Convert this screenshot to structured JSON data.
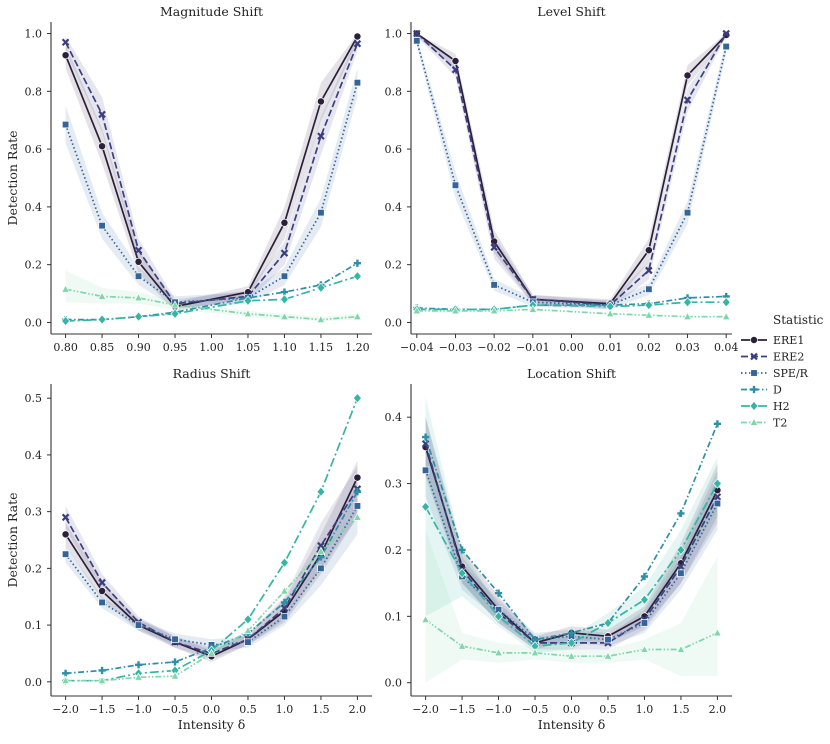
{
  "legend": {
    "title": "Statistic",
    "entries": [
      {
        "name": "ERE1",
        "color": "#2b1f3a",
        "marker": "circle",
        "dash": "solid"
      },
      {
        "name": "ERE2",
        "color": "#3c3f7e",
        "marker": "x",
        "dash": "dash"
      },
      {
        "name": "SPE/R",
        "color": "#34659a",
        "marker": "square",
        "dash": "dot"
      },
      {
        "name": "D",
        "color": "#2e8fa6",
        "marker": "plus",
        "dash": "dashdot"
      },
      {
        "name": "H2",
        "color": "#36b5a5",
        "marker": "diamond",
        "dash": "longdashdot"
      },
      {
        "name": "T2",
        "color": "#80d6ab",
        "marker": "triangle",
        "dash": "dashdotdot"
      }
    ]
  },
  "chart_data": [
    {
      "type": "line",
      "title": "Magnitude Shift",
      "xlabel": "",
      "ylabel": "Detection Rate",
      "x": [
        0.8,
        0.85,
        0.9,
        0.95,
        1.05,
        1.1,
        1.15,
        1.2
      ],
      "tick_labels": [
        "0.80",
        "0.85",
        "0.90",
        "0.95",
        "1.00",
        "1.05",
        "1.10",
        "1.15",
        "1.20"
      ],
      "tick_values": [
        0.8,
        0.85,
        0.9,
        0.95,
        1.0,
        1.05,
        1.1,
        1.15,
        1.2
      ],
      "xlim": [
        0.78,
        1.22
      ],
      "ylim": [
        -0.04,
        1.04
      ],
      "yticks": [
        0.0,
        0.2,
        0.4,
        0.6,
        0.8,
        1.0
      ],
      "ytick_labels": [
        "0.0",
        "0.2",
        "0.4",
        "0.6",
        "0.8",
        "1.0"
      ],
      "series": [
        {
          "name": "ERE1",
          "values": [
            0.925,
            0.61,
            0.21,
            0.055,
            0.105,
            0.345,
            0.765,
            0.99
          ],
          "lower": [
            0.88,
            0.55,
            0.17,
            0.04,
            0.085,
            0.29,
            0.7,
            0.97
          ],
          "upper": [
            0.96,
            0.67,
            0.25,
            0.07,
            0.125,
            0.4,
            0.83,
            1.0
          ]
        },
        {
          "name": "ERE2",
          "values": [
            0.97,
            0.72,
            0.25,
            0.065,
            0.09,
            0.24,
            0.645,
            0.965
          ],
          "lower": [
            0.94,
            0.66,
            0.21,
            0.05,
            0.07,
            0.2,
            0.58,
            0.94
          ],
          "upper": [
            0.99,
            0.78,
            0.29,
            0.08,
            0.11,
            0.28,
            0.71,
            0.99
          ]
        },
        {
          "name": "SPE/R",
          "values": [
            0.685,
            0.335,
            0.16,
            0.07,
            0.085,
            0.16,
            0.38,
            0.83
          ],
          "lower": [
            0.62,
            0.29,
            0.13,
            0.05,
            0.065,
            0.13,
            0.33,
            0.78
          ],
          "upper": [
            0.75,
            0.38,
            0.19,
            0.09,
            0.105,
            0.19,
            0.43,
            0.88
          ]
        },
        {
          "name": "D",
          "values": [
            0.01,
            0.01,
            0.02,
            0.035,
            0.085,
            0.105,
            0.13,
            0.205
          ]
        },
        {
          "name": "H2",
          "values": [
            0.005,
            0.01,
            0.02,
            0.03,
            0.075,
            0.08,
            0.12,
            0.16
          ]
        },
        {
          "name": "T2",
          "values": [
            0.115,
            0.09,
            0.085,
            0.06,
            0.03,
            0.02,
            0.01,
            0.02
          ],
          "lower": [
            0.07,
            0.065,
            0.065,
            0.045,
            0.02,
            0.01,
            0.005,
            0.01
          ],
          "upper": [
            0.18,
            0.12,
            0.105,
            0.075,
            0.04,
            0.03,
            0.02,
            0.03
          ]
        }
      ]
    },
    {
      "type": "line",
      "title": "Level Shift",
      "xlabel": "",
      "ylabel": "",
      "x": [
        -0.04,
        -0.03,
        -0.02,
        -0.01,
        0.01,
        0.02,
        0.03,
        0.04
      ],
      "tick_labels": [
        "−0.04",
        "−0.03",
        "−0.02",
        "−0.01",
        "0.00",
        "0.01",
        "0.02",
        "0.03",
        "0.04"
      ],
      "tick_values": [
        -0.04,
        -0.03,
        -0.02,
        -0.01,
        0.0,
        0.01,
        0.02,
        0.03,
        0.04
      ],
      "xlim": [
        -0.0415,
        0.0415
      ],
      "ylim": [
        -0.04,
        1.04
      ],
      "yticks": [
        0.0,
        0.2,
        0.4,
        0.6,
        0.8,
        1.0
      ],
      "ytick_labels": [
        "0.0",
        "0.2",
        "0.4",
        "0.6",
        "0.8",
        "1.0"
      ],
      "series": [
        {
          "name": "ERE1",
          "values": [
            1.0,
            0.905,
            0.28,
            0.08,
            0.065,
            0.25,
            0.855,
            0.995
          ],
          "lower": [
            0.99,
            0.88,
            0.24,
            0.065,
            0.05,
            0.21,
            0.82,
            0.985
          ],
          "upper": [
            1.0,
            0.93,
            0.32,
            0.095,
            0.08,
            0.29,
            0.89,
            1.0
          ]
        },
        {
          "name": "ERE2",
          "values": [
            1.0,
            0.875,
            0.26,
            0.08,
            0.06,
            0.18,
            0.77,
            1.0
          ],
          "lower": [
            0.99,
            0.85,
            0.22,
            0.065,
            0.045,
            0.15,
            0.73,
            0.99
          ],
          "upper": [
            1.0,
            0.9,
            0.3,
            0.095,
            0.075,
            0.21,
            0.81,
            1.0
          ]
        },
        {
          "name": "SPE/R",
          "values": [
            0.975,
            0.475,
            0.13,
            0.07,
            0.06,
            0.115,
            0.38,
            0.955
          ],
          "lower": [
            0.96,
            0.43,
            0.11,
            0.055,
            0.045,
            0.095,
            0.34,
            0.93
          ],
          "upper": [
            0.99,
            0.52,
            0.15,
            0.085,
            0.075,
            0.135,
            0.42,
            0.98
          ]
        },
        {
          "name": "D",
          "values": [
            0.05,
            0.045,
            0.045,
            0.06,
            0.06,
            0.065,
            0.085,
            0.09
          ]
        },
        {
          "name": "H2",
          "values": [
            0.045,
            0.045,
            0.045,
            0.06,
            0.055,
            0.06,
            0.07,
            0.07
          ]
        },
        {
          "name": "T2",
          "values": [
            0.04,
            0.04,
            0.04,
            0.045,
            0.03,
            0.025,
            0.02,
            0.02
          ]
        }
      ]
    },
    {
      "type": "line",
      "title": "Radius Shift",
      "xlabel": "Intensity δ",
      "ylabel": "Detection Rate",
      "x": [
        -2.0,
        -1.5,
        -1.0,
        -0.5,
        0.0,
        0.5,
        1.0,
        1.5,
        2.0
      ],
      "tick_labels": [
        "−2.0",
        "−1.5",
        "−1.0",
        "−0.5",
        "0.0",
        "0.5",
        "1.0",
        "1.5",
        "2.0"
      ],
      "tick_values": [
        -2.0,
        -1.5,
        -1.0,
        -0.5,
        0.0,
        0.5,
        1.0,
        1.5,
        2.0
      ],
      "xlim": [
        -2.2,
        2.2
      ],
      "ylim": [
        -0.025,
        0.525
      ],
      "yticks": [
        0.0,
        0.1,
        0.2,
        0.3,
        0.4,
        0.5
      ],
      "ytick_labels": [
        "0.0",
        "0.1",
        "0.2",
        "0.3",
        "0.4",
        "0.5"
      ],
      "series": [
        {
          "name": "ERE1",
          "values": [
            0.26,
            0.16,
            0.1,
            0.07,
            0.045,
            0.075,
            0.125,
            0.225,
            0.36
          ],
          "lower": [
            0.24,
            0.145,
            0.09,
            0.06,
            0.035,
            0.065,
            0.105,
            0.19,
            0.29
          ],
          "upper": [
            0.28,
            0.175,
            0.11,
            0.08,
            0.055,
            0.085,
            0.145,
            0.26,
            0.39
          ]
        },
        {
          "name": "ERE2",
          "values": [
            0.29,
            0.175,
            0.105,
            0.07,
            0.05,
            0.075,
            0.13,
            0.24,
            0.34
          ],
          "lower": [
            0.27,
            0.16,
            0.095,
            0.06,
            0.04,
            0.065,
            0.11,
            0.2,
            0.29
          ],
          "upper": [
            0.31,
            0.19,
            0.115,
            0.08,
            0.06,
            0.085,
            0.15,
            0.28,
            0.38
          ]
        },
        {
          "name": "SPE/R",
          "values": [
            0.225,
            0.14,
            0.1,
            0.075,
            0.065,
            0.07,
            0.115,
            0.2,
            0.31
          ],
          "lower": [
            0.21,
            0.13,
            0.09,
            0.065,
            0.055,
            0.06,
            0.1,
            0.17,
            0.26
          ],
          "upper": [
            0.24,
            0.15,
            0.11,
            0.085,
            0.075,
            0.08,
            0.13,
            0.23,
            0.35
          ]
        },
        {
          "name": "D",
          "values": [
            0.015,
            0.02,
            0.03,
            0.035,
            0.06,
            0.085,
            0.14,
            0.22,
            0.335
          ]
        },
        {
          "name": "H2",
          "values": [
            0.002,
            0.002,
            0.015,
            0.02,
            0.055,
            0.11,
            0.21,
            0.335,
            0.5
          ]
        },
        {
          "name": "T2",
          "values": [
            0.002,
            0.002,
            0.008,
            0.01,
            0.05,
            0.09,
            0.16,
            0.23,
            0.29
          ]
        }
      ]
    },
    {
      "type": "line",
      "title": "Location Shift",
      "xlabel": "Intensity δ",
      "ylabel": "",
      "x": [
        -2.0,
        -1.5,
        -1.0,
        -0.5,
        0.0,
        0.5,
        1.0,
        1.5,
        2.0
      ],
      "tick_labels": [
        "−2.0",
        "−1.5",
        "−1.0",
        "−0.5",
        "0.0",
        "0.5",
        "1.0",
        "1.5",
        "2.0"
      ],
      "tick_values": [
        -2.0,
        -1.5,
        -1.0,
        -0.5,
        0.0,
        0.5,
        1.0,
        1.5,
        2.0
      ],
      "xlim": [
        -2.2,
        2.2
      ],
      "ylim": [
        -0.02,
        0.45
      ],
      "yticks": [
        0.0,
        0.1,
        0.2,
        0.3,
        0.4
      ],
      "ytick_labels": [
        "0.0",
        "0.1",
        "0.2",
        "0.3",
        "0.4"
      ],
      "series": [
        {
          "name": "ERE1",
          "values": [
            0.355,
            0.175,
            0.11,
            0.06,
            0.075,
            0.07,
            0.1,
            0.18,
            0.29
          ],
          "lower": [
            0.31,
            0.15,
            0.09,
            0.05,
            0.065,
            0.06,
            0.085,
            0.15,
            0.25
          ],
          "upper": [
            0.4,
            0.2,
            0.13,
            0.07,
            0.085,
            0.08,
            0.115,
            0.21,
            0.33
          ]
        },
        {
          "name": "ERE2",
          "values": [
            0.36,
            0.17,
            0.105,
            0.06,
            0.06,
            0.06,
            0.095,
            0.175,
            0.28
          ],
          "lower": [
            0.32,
            0.15,
            0.09,
            0.05,
            0.05,
            0.05,
            0.08,
            0.15,
            0.24
          ],
          "upper": [
            0.4,
            0.19,
            0.12,
            0.07,
            0.07,
            0.07,
            0.11,
            0.2,
            0.32
          ]
        },
        {
          "name": "SPE/R",
          "values": [
            0.32,
            0.16,
            0.11,
            0.065,
            0.07,
            0.065,
            0.09,
            0.165,
            0.27
          ],
          "lower": [
            0.28,
            0.14,
            0.095,
            0.055,
            0.06,
            0.055,
            0.075,
            0.14,
            0.23
          ],
          "upper": [
            0.36,
            0.18,
            0.125,
            0.075,
            0.08,
            0.075,
            0.105,
            0.19,
            0.31
          ]
        },
        {
          "name": "D",
          "values": [
            0.37,
            0.2,
            0.135,
            0.065,
            0.075,
            0.09,
            0.16,
            0.255,
            0.39
          ]
        },
        {
          "name": "H2",
          "values": [
            0.265,
            0.165,
            0.1,
            0.055,
            0.06,
            0.09,
            0.125,
            0.2,
            0.3
          ],
          "lower": [
            0.1,
            0.13,
            0.085,
            0.045,
            0.05,
            0.075,
            0.105,
            0.17,
            0.26
          ],
          "upper": [
            0.43,
            0.2,
            0.115,
            0.065,
            0.07,
            0.105,
            0.145,
            0.23,
            0.34
          ]
        },
        {
          "name": "T2",
          "values": [
            0.095,
            0.055,
            0.045,
            0.045,
            0.04,
            0.04,
            0.05,
            0.05,
            0.075
          ],
          "lower": [
            0.0,
            0.035,
            0.03,
            0.035,
            0.03,
            0.03,
            0.035,
            0.01,
            0.01
          ],
          "upper": [
            0.23,
            0.075,
            0.06,
            0.055,
            0.05,
            0.05,
            0.065,
            0.09,
            0.19
          ]
        }
      ]
    }
  ]
}
